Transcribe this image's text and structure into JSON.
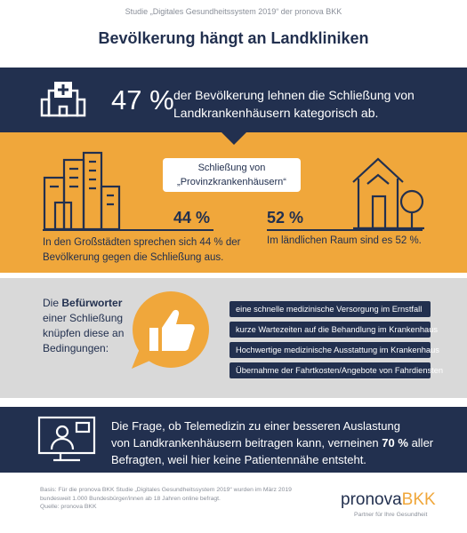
{
  "header": {
    "subtitle": "Studie „Digitales Gesundheitssystem 2019“ der pronova BKK",
    "title": "Bevölkerung hängt an Landkliniken"
  },
  "headline": {
    "value": "47 %",
    "text_lines": [
      "der Bevölkerung lehnen die Schließung von",
      "Landkrankenhäusern kategorisch ab."
    ]
  },
  "comparison": {
    "label_lines": [
      "Schließung von",
      "„Provinzkrankenhäusern“"
    ],
    "city": {
      "value": "44 %",
      "text_lines": [
        "In den Großstädten sprechen sich 44 % der",
        "Bevölkerung gegen die Schließung aus."
      ]
    },
    "rural": {
      "value": "52 %",
      "text": "Im ländlichen Raum sind es 52 %."
    }
  },
  "conditions": {
    "intro_prefix": "Die",
    "intro_bold": "Befürworter",
    "intro_lines": [
      "einer Schließung",
      "knüpfen diese an",
      "Bedingungen:"
    ],
    "items": [
      "eine schnelle medizinische Versorgung im Ernstfall",
      "kurze Wartezeiten auf die Behandlung im Krankenhaus",
      "Hochwertige medizinische Ausstattung im Krankenhaus",
      "Übernahme der Fahrtkosten/Angebote von Fahrdiensten"
    ]
  },
  "telemedicine": {
    "line1": "Die Frage, ob Telemedizin zu einer besseren Auslastung",
    "line2_start": "von Landkrankenhäusern beitragen kann, verneinen",
    "line2_bold": "70 %",
    "line2_end": "aller",
    "line3": "Befragten, weil hier keine Patientennähe entsteht."
  },
  "footer": {
    "source_lines": [
      "Basis: Für die pronova BKK Studie „Digitales Gesundheitssystem 2019“ wurden im März 2019",
      "bundesweit 1.000 Bundesbürger/innen ab 18 Jahren online befragt.",
      "Quelle: pronova BKK"
    ],
    "logo": [
      "pronova",
      "BKK"
    ],
    "tagline": "Partner für Ihre Gesundheit"
  }
}
